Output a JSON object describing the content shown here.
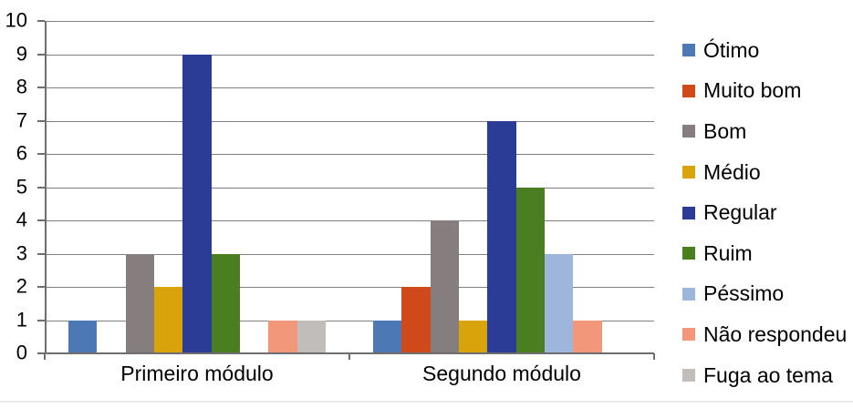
{
  "chart_data": {
    "type": "bar",
    "title": "",
    "categories": [
      "Primeiro módulo",
      "Segundo módulo"
    ],
    "series": [
      {
        "name": "Ótimo",
        "color": "#4C78B5",
        "values": [
          1,
          1
        ]
      },
      {
        "name": "Muito bom",
        "color": "#D0491A",
        "values": [
          0,
          2
        ]
      },
      {
        "name": "Bom",
        "color": "#867E7E",
        "values": [
          3,
          4
        ]
      },
      {
        "name": "Médio",
        "color": "#D9A30B",
        "values": [
          2,
          1
        ]
      },
      {
        "name": "Regular",
        "color": "#2A3C95",
        "values": [
          9,
          7
        ]
      },
      {
        "name": "Ruim",
        "color": "#4A7E21",
        "values": [
          3,
          5
        ]
      },
      {
        "name": "Péssimo",
        "color": "#9FB6DC",
        "values": [
          0,
          3
        ]
      },
      {
        "name": "Não respondeu",
        "color": "#F2977A",
        "values": [
          1,
          1
        ]
      },
      {
        "name": "Fuga ao tema",
        "color": "#C0BDBA",
        "values": [
          1,
          0
        ]
      }
    ],
    "ylim": [
      0,
      10
    ],
    "yticks": [
      "0",
      "1",
      "2",
      "3",
      "4",
      "5",
      "6",
      "7",
      "8",
      "9",
      "10"
    ],
    "grid": true,
    "legend_position": "right",
    "colors": {
      "axis": "#6E6E6E",
      "gridline": "#808080",
      "text": "#000000",
      "background": "#FFFFFF"
    }
  }
}
